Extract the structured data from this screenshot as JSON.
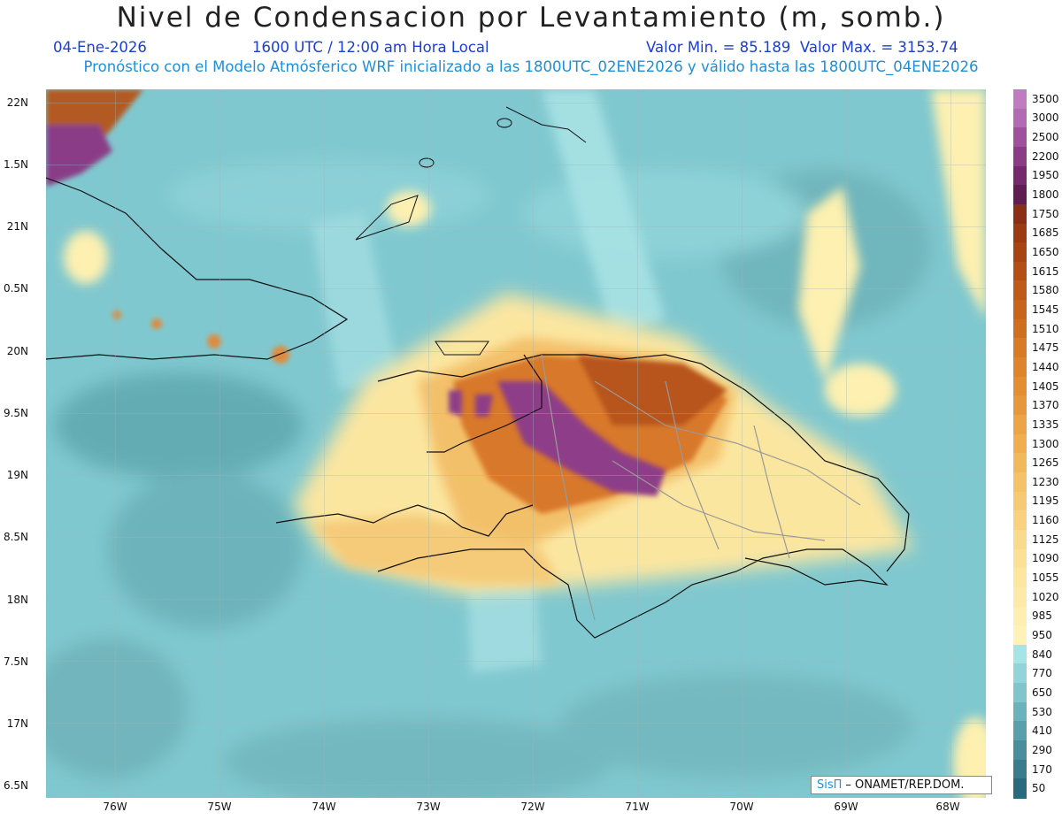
{
  "title": "Nivel de Condensacion por Levantamiento (m, somb.)",
  "date": "04-Ene-2026",
  "time": "1600 UTC / 12:00 am Hora Local",
  "min_max": "Valor Min. = 85.189  Valor Max. = 3153.74",
  "forecast_note": "Pronóstico con el Modelo Atmósferico WRF inicializado a las 1800UTC_02ENE2026 y válido hasta las  1800UTC_04ENE2026",
  "lat_labels": [
    "22N",
    "1.5N",
    "21N",
    "0.5N",
    "20N",
    "9.5N",
    "19N",
    "8.5N",
    "18N",
    "7.5N",
    "17N",
    "6.5N"
  ],
  "lon_labels": [
    "76W",
    "75W",
    "74W",
    "73W",
    "72W",
    "71W",
    "70W",
    "69W",
    "68W"
  ],
  "colorbar": {
    "labels": [
      "3500",
      "3000",
      "2500",
      "2200",
      "1950",
      "1800",
      "1750",
      "1685",
      "1650",
      "1615",
      "1580",
      "1545",
      "1510",
      "1475",
      "1440",
      "1405",
      "1370",
      "1335",
      "1300",
      "1265",
      "1230",
      "1195",
      "1160",
      "1125",
      "1090",
      "1055",
      "1020",
      "985",
      "950",
      "840",
      "770",
      "650",
      "530",
      "410",
      "290",
      "170",
      "50"
    ],
    "colors": [
      "#c07cc0",
      "#b26ab4",
      "#9e529e",
      "#8a3c86",
      "#742a6e",
      "#5e1e52",
      "#8a2e18",
      "#9c3a14",
      "#a84414",
      "#b44e16",
      "#c05a18",
      "#c8641c",
      "#d06e20",
      "#d87a26",
      "#de842c",
      "#e48e34",
      "#e8983c",
      "#eca446",
      "#f0ae50",
      "#f2b85c",
      "#f4c268",
      "#f6ca74",
      "#f8d280",
      "#fada8c",
      "#fbe096",
      "#fce6a0",
      "#fdeaa8",
      "#feeeb0",
      "#fff2b8",
      "#a8e4e6",
      "#92d4da",
      "#80c4cc",
      "#6ab2bc",
      "#5aa0ac",
      "#4a8e9e",
      "#3a7c8e",
      "#2a6a7e"
    ]
  },
  "credit": {
    "logo": "SisΠ",
    "text": "– ONAMET/REP.DOM."
  }
}
